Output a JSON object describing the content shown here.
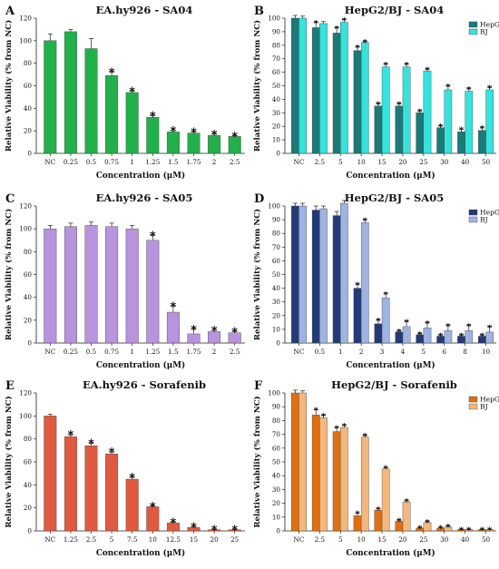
{
  "chart_data": [
    {
      "id": "A",
      "letter": "A",
      "type": "bar",
      "title": "EA.hy926 - SA04",
      "xlabel": "Concentration (μM)",
      "ylabel": "Relative Viability (% from NC)",
      "ylim": [
        0,
        120
      ],
      "yticks": [
        0,
        20,
        40,
        60,
        80,
        100,
        120
      ],
      "categories": [
        "NC",
        "0.25",
        "0.5",
        "0.75",
        "1",
        "1.25",
        "1.5",
        "1.75",
        "2",
        "2.5"
      ],
      "series": [
        {
          "color": "#22b04b",
          "values": [
            100,
            108,
            93,
            69,
            54,
            32,
            19,
            18,
            16,
            15
          ],
          "errors": [
            6,
            2,
            9,
            3,
            1,
            1.5,
            1,
            1,
            1,
            0.5
          ],
          "stars": [
            false,
            false,
            false,
            true,
            true,
            true,
            true,
            true,
            true,
            true
          ]
        }
      ]
    },
    {
      "id": "B",
      "letter": "B",
      "type": "bar",
      "title": "HepG2/BJ - SA04",
      "xlabel": "Concentration (μM)",
      "ylabel": "Relative Viability (% from NC)",
      "ylim": [
        0,
        100
      ],
      "yticks": [
        0,
        10,
        20,
        30,
        40,
        50,
        60,
        70,
        80,
        90,
        100
      ],
      "legend": "top-right",
      "categories": [
        "NC",
        "2.5",
        "5",
        "10",
        "15",
        "20",
        "25",
        "30",
        "40",
        "50"
      ],
      "series": [
        {
          "name": "HepG2",
          "color": "#1a7a78",
          "values": [
            100,
            93,
            89,
            76,
            35,
            35,
            30,
            19,
            16,
            17
          ],
          "errors": [
            2,
            4,
            4,
            3,
            2,
            2,
            1.5,
            1.5,
            2,
            2
          ],
          "stars": [
            false,
            true,
            true,
            true,
            true,
            true,
            true,
            true,
            true,
            true
          ]
        },
        {
          "name": "BJ",
          "color": "#35e3dc",
          "values": [
            100,
            96,
            97,
            82,
            64,
            64,
            61,
            47,
            46,
            47
          ],
          "errors": [
            1.5,
            1.5,
            2,
            1,
            2,
            2,
            1.5,
            3,
            2,
            2
          ],
          "stars": [
            false,
            false,
            true,
            true,
            true,
            true,
            true,
            true,
            true,
            true
          ]
        }
      ]
    },
    {
      "id": "C",
      "letter": "C",
      "type": "bar",
      "title": "EA.hy926 - SA05",
      "xlabel": "Concentration (μM)",
      "ylabel": "Relative Viability (% from NC)",
      "ylim": [
        0,
        120
      ],
      "yticks": [
        0,
        20,
        40,
        60,
        80,
        100,
        120
      ],
      "categories": [
        "NC",
        "0.25",
        "0.5",
        "0.75",
        "1",
        "1.25",
        "1.5",
        "1.75",
        "2",
        "2.5"
      ],
      "series": [
        {
          "color": "#b794dd",
          "values": [
            100,
            102,
            103,
            102,
            100,
            90,
            27,
            8,
            10,
            9
          ],
          "errors": [
            3,
            3,
            3,
            3,
            3,
            4,
            5,
            4,
            1,
            1
          ],
          "stars": [
            false,
            false,
            false,
            false,
            false,
            true,
            true,
            true,
            true,
            true
          ]
        }
      ]
    },
    {
      "id": "D",
      "letter": "D",
      "type": "bar",
      "title": "HepG2/BJ - SA05",
      "xlabel": "Concentration (μM)",
      "ylabel": "Relative Viability (% from NC)",
      "ylim": [
        0,
        100
      ],
      "yticks": [
        0,
        10,
        20,
        30,
        40,
        50,
        60,
        70,
        80,
        90,
        100
      ],
      "legend": "top-right",
      "categories": [
        "NC",
        "0.5",
        "1",
        "2",
        "3",
        "4",
        "5",
        "6",
        "8",
        "10"
      ],
      "series": [
        {
          "name": "HepG2",
          "color": "#233a78",
          "values": [
            100,
            97,
            93,
            40,
            14,
            8,
            6,
            5,
            5,
            5
          ],
          "errors": [
            2,
            3,
            3,
            3,
            3,
            1,
            1,
            1,
            1,
            1
          ],
          "stars": [
            false,
            false,
            false,
            true,
            true,
            true,
            true,
            true,
            true,
            true
          ]
        },
        {
          "name": "BJ",
          "color": "#9eb3e0",
          "values": [
            100,
            98,
            102,
            88,
            33,
            12,
            11,
            9,
            9,
            8
          ],
          "errors": [
            2,
            2,
            2,
            2,
            3,
            4,
            4,
            4,
            4,
            4
          ],
          "stars": [
            false,
            false,
            false,
            true,
            true,
            true,
            true,
            true,
            true,
            true
          ]
        }
      ]
    },
    {
      "id": "E",
      "letter": "E",
      "type": "bar",
      "title": "EA.hy926 - Sorafenib",
      "xlabel": "Concentration (μM)",
      "ylabel": "Relative Viability (% from NC)",
      "ylim": [
        0,
        120
      ],
      "yticks": [
        0,
        20,
        40,
        60,
        80,
        100,
        120
      ],
      "categories": [
        "NC",
        "1.25",
        "2.5",
        "5",
        "7.5",
        "10",
        "12.5",
        "15",
        "20",
        "25"
      ],
      "series": [
        {
          "color": "#e05a40",
          "values": [
            100,
            82,
            74,
            67,
            45,
            21,
            7,
            3,
            1,
            1
          ],
          "errors": [
            1.5,
            1.5,
            2,
            1.5,
            1.5,
            0.5,
            0.5,
            0.5,
            0.3,
            0.3
          ],
          "stars": [
            false,
            true,
            true,
            true,
            true,
            true,
            true,
            true,
            true,
            true
          ]
        }
      ]
    },
    {
      "id": "F",
      "letter": "F",
      "type": "bar",
      "title": "HepG2/BJ - Sorafenib",
      "xlabel": "Concentration (μM)",
      "ylabel": "Relative Viability (% from NC)",
      "ylim": [
        0,
        100
      ],
      "yticks": [
        0,
        10,
        20,
        30,
        40,
        50,
        60,
        70,
        80,
        90,
        100
      ],
      "legend": "top-right",
      "categories": [
        "NC",
        "2.5",
        "5",
        "10",
        "15",
        "20",
        "25",
        "30",
        "40",
        "50"
      ],
      "series": [
        {
          "name": "HepG2",
          "color": "#e0700f",
          "values": [
            100,
            84,
            72,
            11,
            15,
            7,
            2,
            2,
            1,
            1
          ],
          "errors": [
            2,
            4,
            3,
            2,
            1,
            1,
            0.5,
            0.5,
            0.3,
            0.3
          ],
          "stars": [
            false,
            true,
            true,
            true,
            true,
            true,
            true,
            true,
            true,
            true
          ]
        },
        {
          "name": "BJ",
          "color": "#f4b77d",
          "values": [
            100,
            82,
            75,
            68,
            45,
            21,
            6,
            3,
            1,
            1
          ],
          "errors": [
            1.5,
            2,
            1.5,
            1.5,
            1,
            1,
            1,
            0.5,
            0.3,
            0.3
          ],
          "stars": [
            false,
            true,
            true,
            true,
            true,
            true,
            true,
            true,
            true,
            true
          ]
        }
      ]
    }
  ]
}
